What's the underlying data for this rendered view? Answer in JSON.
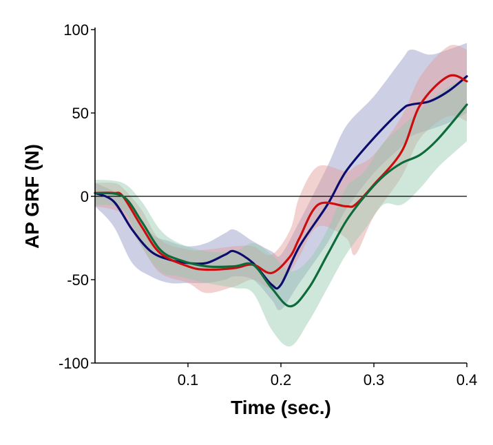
{
  "chart_data": {
    "type": "line",
    "title": "",
    "xlabel": "Time (sec.)",
    "ylabel": "AP GRF (N)",
    "xlim": [
      0,
      0.4
    ],
    "ylim": [
      -100,
      100
    ],
    "xticks": [
      0.1,
      0.2,
      0.3,
      0.4
    ],
    "xtick_labels": [
      "0.1",
      "0.2",
      "0.3",
      "0.4"
    ],
    "yticks": [
      -100,
      -50,
      0,
      50,
      100
    ],
    "ytick_labels": [
      "-100",
      "-50",
      "0",
      "50",
      "100"
    ],
    "reference_line_y": 0,
    "grid": false,
    "legend": "none",
    "series": [
      {
        "color": "#0c0c6e",
        "band_color": "#9096c4",
        "x": [
          0.0,
          0.02,
          0.04,
          0.06,
          0.08,
          0.1,
          0.12,
          0.14,
          0.15,
          0.17,
          0.19,
          0.2,
          0.22,
          0.25,
          0.27,
          0.3,
          0.33,
          0.34,
          0.36,
          0.38,
          0.4
        ],
        "mean": [
          2,
          -3,
          -20,
          -33,
          -38,
          -40,
          -40,
          -35,
          -33,
          -40,
          -53,
          -53,
          -30,
          -5,
          15,
          35,
          52,
          55,
          57,
          63,
          72
        ],
        "lower": [
          -6,
          -18,
          -40,
          -48,
          -52,
          -52,
          -52,
          -50,
          -48,
          -50,
          -62,
          -68,
          -52,
          -28,
          -8,
          14,
          30,
          36,
          40,
          44,
          50
        ],
        "upper": [
          8,
          3,
          -5,
          -22,
          -27,
          -30,
          -28,
          -22,
          -20,
          -27,
          -33,
          -35,
          -15,
          18,
          42,
          60,
          82,
          88,
          85,
          88,
          92
        ]
      },
      {
        "color": "#cc0d0d",
        "band_color": "#e29a9a",
        "x": [
          0.0,
          0.02,
          0.03,
          0.05,
          0.07,
          0.1,
          0.12,
          0.15,
          0.17,
          0.19,
          0.21,
          0.22,
          0.24,
          0.27,
          0.28,
          0.3,
          0.33,
          0.35,
          0.38,
          0.4
        ],
        "mean": [
          2,
          2,
          0,
          -18,
          -34,
          -42,
          -44,
          -43,
          -41,
          -46,
          -36,
          -25,
          -5,
          -6,
          -5,
          7,
          27,
          55,
          72,
          69
        ],
        "lower": [
          -6,
          -8,
          -12,
          -30,
          -46,
          -52,
          -58,
          -54,
          -50,
          -55,
          -45,
          -36,
          -18,
          -25,
          -35,
          -12,
          12,
          35,
          48,
          45
        ],
        "upper": [
          8,
          8,
          5,
          -8,
          -26,
          -32,
          -32,
          -30,
          -30,
          -35,
          -20,
          0,
          18,
          15,
          18,
          25,
          48,
          72,
          90,
          88
        ]
      },
      {
        "color": "#0e6a3a",
        "band_color": "#94c9ae",
        "x": [
          0.0,
          0.03,
          0.05,
          0.07,
          0.09,
          0.12,
          0.15,
          0.17,
          0.19,
          0.21,
          0.23,
          0.25,
          0.27,
          0.29,
          0.31,
          0.33,
          0.35,
          0.37,
          0.4
        ],
        "mean": [
          2,
          0,
          -15,
          -32,
          -38,
          -42,
          -42,
          -41,
          -55,
          -66,
          -55,
          -35,
          -15,
          0,
          12,
          20,
          25,
          35,
          55
        ],
        "lower": [
          -5,
          -8,
          -30,
          -45,
          -48,
          -52,
          -55,
          -58,
          -80,
          -90,
          -75,
          -55,
          -35,
          -20,
          -5,
          -5,
          5,
          18,
          33
        ],
        "upper": [
          10,
          8,
          -3,
          -20,
          -28,
          -33,
          -33,
          -28,
          -35,
          -45,
          -38,
          -20,
          5,
          15,
          32,
          42,
          52,
          62,
          72
        ]
      }
    ]
  }
}
